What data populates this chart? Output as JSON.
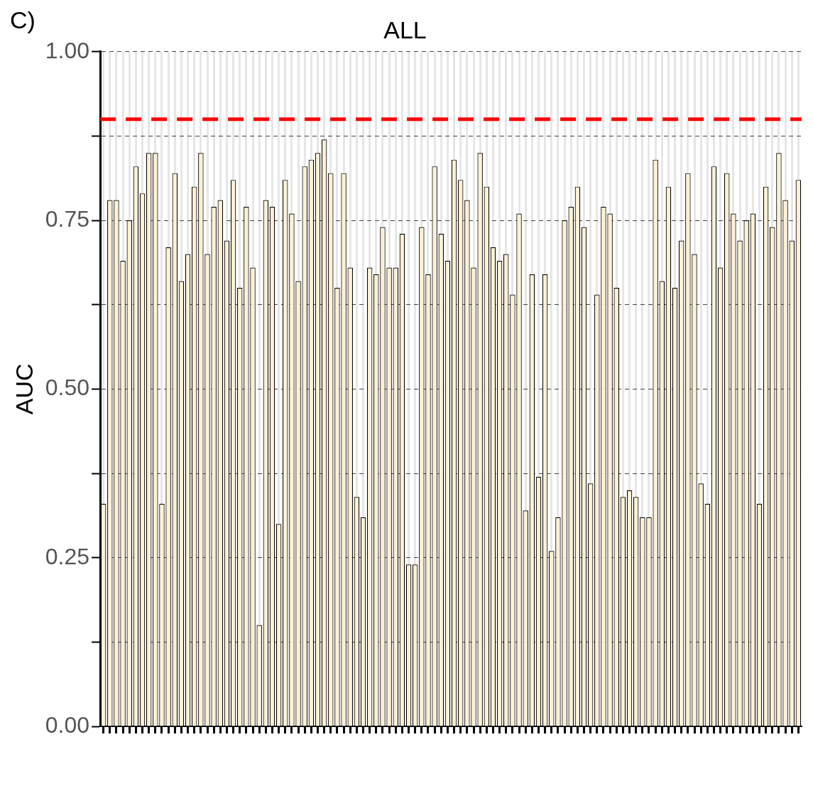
{
  "chart_data": {
    "type": "bar",
    "title": "ALL",
    "ylabel": "AUC",
    "annotations": [
      "C)"
    ],
    "categories": [
      null,
      null,
      null,
      null,
      null,
      null,
      null,
      null,
      null,
      null,
      null,
      null,
      null,
      null,
      null,
      null,
      null,
      null,
      null,
      null,
      null,
      null,
      null,
      null,
      null,
      null,
      null,
      null,
      null,
      null,
      null,
      null,
      null,
      null,
      null,
      null,
      null,
      null,
      null,
      null,
      null,
      null,
      null,
      null,
      null,
      null,
      null,
      null,
      null,
      null,
      null,
      null,
      null,
      null,
      null,
      null,
      null,
      null,
      null,
      null,
      null,
      null,
      null,
      null,
      null,
      null,
      null,
      null,
      null,
      null,
      null,
      null,
      null,
      null,
      null,
      null,
      null,
      null,
      null,
      null,
      null,
      null,
      null,
      null,
      null,
      null,
      null,
      null,
      null,
      null,
      null,
      null,
      null,
      null,
      null,
      null,
      null,
      null,
      null,
      null,
      null,
      null,
      null,
      null,
      null,
      null,
      null,
      null
    ],
    "values": [
      0.33,
      0.78,
      0.78,
      0.69,
      0.75,
      0.83,
      0.79,
      0.85,
      0.85,
      0.33,
      0.71,
      0.82,
      0.66,
      0.7,
      0.8,
      0.85,
      0.7,
      0.77,
      0.78,
      0.72,
      0.81,
      0.65,
      0.77,
      0.68,
      0.15,
      0.78,
      0.77,
      0.3,
      0.81,
      0.76,
      0.66,
      0.83,
      0.84,
      0.85,
      0.87,
      0.82,
      0.65,
      0.82,
      0.68,
      0.34,
      0.31,
      0.68,
      0.67,
      0.74,
      0.68,
      0.68,
      0.73,
      0.24,
      0.24,
      0.74,
      0.67,
      0.83,
      0.73,
      0.69,
      0.84,
      0.81,
      0.78,
      0.68,
      0.85,
      0.8,
      0.71,
      0.69,
      0.7,
      0.64,
      0.76,
      0.32,
      0.67,
      0.37,
      0.67,
      0.26,
      0.31,
      0.75,
      0.77,
      0.8,
      0.74,
      0.36,
      0.64,
      0.77,
      0.76,
      0.65,
      0.34,
      0.35,
      0.34,
      0.31,
      0.31,
      0.84,
      0.66,
      0.8,
      0.65,
      0.72,
      0.82,
      0.7,
      0.36,
      0.33,
      0.83,
      0.68,
      0.82,
      0.76,
      0.72,
      0.75,
      0.76,
      0.33,
      0.8,
      0.74,
      0.85,
      0.78,
      0.72,
      0.81
    ],
    "color": "#fdf0d5",
    "ylim": [
      0,
      1
    ],
    "yticks": [
      {
        "value": 0,
        "label": "0.00"
      },
      {
        "value": 0.125,
        "label": null
      },
      {
        "value": 0.25,
        "label": "0.25"
      },
      {
        "value": 0.375,
        "label": null
      },
      {
        "value": 0.5,
        "label": "0.50"
      },
      {
        "value": 0.625,
        "label": null
      },
      {
        "value": 0.75,
        "label": "0.75"
      },
      {
        "value": 0.875,
        "label": null
      },
      {
        "value": 1,
        "label": "1.00"
      }
    ],
    "ref_lines": [
      {
        "axis": "y",
        "value": 0.9,
        "color": "#ff0000",
        "line_style": "dashed"
      }
    ],
    "grid": true,
    "legend": false
  }
}
